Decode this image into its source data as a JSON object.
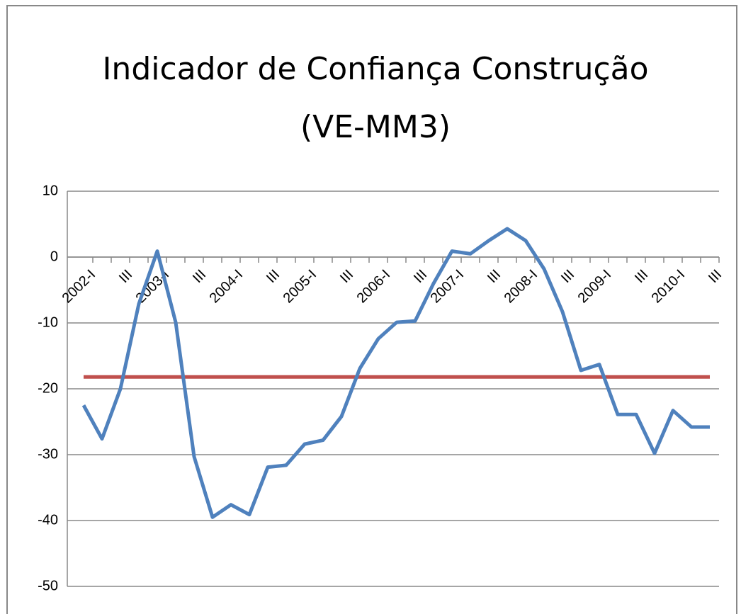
{
  "chart_data": {
    "type": "line",
    "title": [
      "Indicador de Confiança Construção",
      "(VE-MM3)"
    ],
    "categories": [
      "2002-I",
      null,
      "III",
      null,
      "2003-I",
      null,
      "III",
      null,
      "2004-I",
      null,
      "III",
      null,
      "2005-I",
      null,
      "III",
      null,
      "2006-I",
      null,
      "III",
      null,
      "2007-I",
      null,
      "III",
      null,
      "2008-I",
      null,
      "III",
      null,
      "2009-I",
      null,
      "III",
      null,
      "2010-I",
      null,
      "III"
    ],
    "series": [
      {
        "color": "#4f81bd",
        "values": [
          -22.5,
          -27.6,
          -20,
          -7.1,
          0.9,
          -9.9,
          -30.3,
          -39.5,
          -37.6,
          -39.1,
          -31.9,
          -31.6,
          -28.4,
          -27.8,
          -24.2,
          -16.9,
          -12.4,
          -9.9,
          -9.7,
          -4,
          0.9,
          0.5,
          2.5,
          4.3,
          2.5,
          -1.8,
          -8.3,
          -17.2,
          -16.3,
          -23.9,
          -23.9,
          -29.8,
          -23.3,
          -25.8,
          -25.8
        ]
      }
    ],
    "reference_line": {
      "value": -18.2,
      "color": "#c0504d"
    },
    "ylim": [
      -50,
      10
    ],
    "yticks": [
      -50,
      -40,
      -30,
      -20,
      -10,
      0,
      10
    ],
    "grid": true
  }
}
